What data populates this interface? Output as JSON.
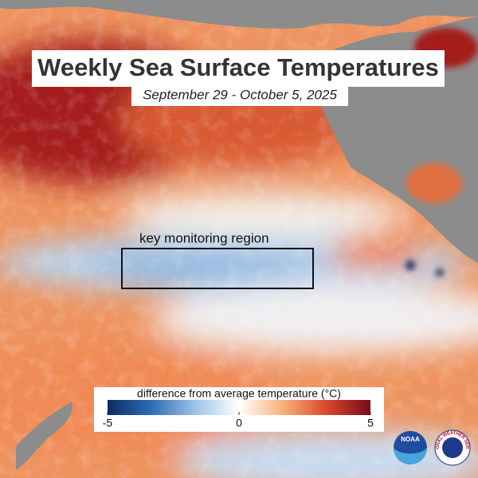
{
  "header": {
    "title": "Weekly Sea Surface Temperatures",
    "subtitle": "September 29 - October 5, 2025"
  },
  "annotation": {
    "label": "key monitoring region"
  },
  "legend": {
    "title": "difference from average temperature (°C)",
    "range": [
      -5,
      5
    ],
    "ticks": [
      -5,
      0,
      5
    ],
    "colors": [
      "#0d2a5e",
      "#2f6db3",
      "#9cc4e6",
      "#ffffff",
      "#f7b27a",
      "#d9472b",
      "#7a0a1e"
    ]
  },
  "logos": {
    "noaa": "NOAA",
    "nws": "NATIONAL WEATHER SERVICE"
  }
}
